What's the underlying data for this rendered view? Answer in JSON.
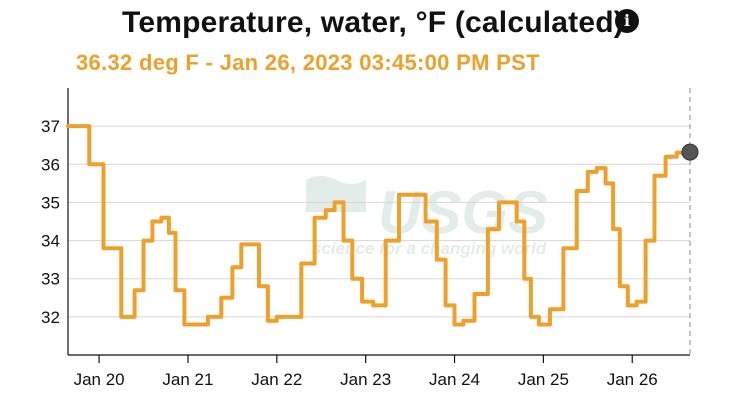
{
  "header": {
    "title": "Temperature, water, °F (calculated)",
    "subtitle": "36.32 deg F - Jan 26, 2023 03:45:00 PM PST"
  },
  "watermark": {
    "logo_text": "USGS",
    "tagline": "science for a changing world"
  },
  "colors": {
    "line": "#eea02a",
    "grid": "#d6d6d6",
    "marker": "#555555",
    "watermark": "#e2ece8",
    "axis": "#111111"
  },
  "chart_data": {
    "type": "line",
    "title": "Temperature, water, °F (calculated)",
    "xlabel": "",
    "ylabel": "",
    "xlim": [
      -0.35,
      6.65
    ],
    "ylim": [
      31,
      38
    ],
    "y_ticks": [
      32,
      33,
      34,
      35,
      36,
      37
    ],
    "x_ticks": [
      {
        "value": 0,
        "label": "Jan 20"
      },
      {
        "value": 1,
        "label": "Jan 21"
      },
      {
        "value": 2,
        "label": "Jan 22"
      },
      {
        "value": 3,
        "label": "Jan 23"
      },
      {
        "value": 4,
        "label": "Jan 24"
      },
      {
        "value": 5,
        "label": "Jan 25"
      },
      {
        "value": 6,
        "label": "Jan 26"
      }
    ],
    "grid": true,
    "series": [
      {
        "name": "Temperature, water, °F",
        "x": [
          -0.35,
          -0.17,
          -0.05,
          0.15,
          0.35,
          0.45,
          0.55,
          0.65,
          0.75,
          0.82,
          0.9,
          1.02,
          1.15,
          1.3,
          1.45,
          1.55,
          1.65,
          1.75,
          1.85,
          1.95,
          2.05,
          2.2,
          2.35,
          2.5,
          2.6,
          2.7,
          2.8,
          2.9,
          3.02,
          3.15,
          3.3,
          3.45,
          3.6,
          3.75,
          3.85,
          3.95,
          4.05,
          4.15,
          4.3,
          4.45,
          4.55,
          4.65,
          4.75,
          4.82,
          4.9,
          5.0,
          5.15,
          5.3,
          5.45,
          5.55,
          5.65,
          5.75,
          5.82,
          5.9,
          6.0,
          6.1,
          6.2,
          6.3,
          6.45,
          6.55,
          6.65
        ],
        "values": [
          37.0,
          37.0,
          36.0,
          33.8,
          32.0,
          32.7,
          34.0,
          34.5,
          34.6,
          34.2,
          32.7,
          31.8,
          31.8,
          32.0,
          32.5,
          33.3,
          33.9,
          33.9,
          32.8,
          31.9,
          32.0,
          32.0,
          33.4,
          34.6,
          34.8,
          35.0,
          34.0,
          33.0,
          32.4,
          32.3,
          34.0,
          35.2,
          35.2,
          34.5,
          33.5,
          32.3,
          31.8,
          31.9,
          32.6,
          34.3,
          35.0,
          35.0,
          34.5,
          33.0,
          32.0,
          31.8,
          32.2,
          33.8,
          35.3,
          35.8,
          35.9,
          35.5,
          34.3,
          32.8,
          32.3,
          32.4,
          34.0,
          35.7,
          36.2,
          36.3,
          36.32
        ]
      }
    ],
    "current_marker": {
      "x": 6.65,
      "y": 36.32
    }
  }
}
